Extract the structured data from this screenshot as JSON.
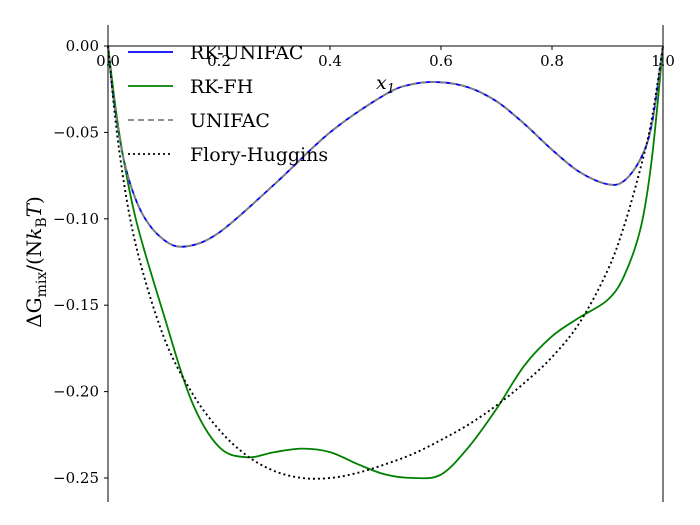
{
  "chart_data": {
    "type": "line",
    "xlabel": "x1",
    "ylabel": "ΔG_mix/(N k_B T)",
    "xlim": [
      0.0,
      1.0
    ],
    "ylim": [
      -0.265,
      0.013
    ],
    "xticks": [
      0.0,
      0.2,
      0.4,
      0.6,
      0.8,
      1.0
    ],
    "xtick_labels": [
      "0.0",
      "0.2",
      "0.4",
      "0.6",
      "0.8",
      "1.0"
    ],
    "yticks": [
      0.0,
      -0.05,
      -0.1,
      -0.15,
      -0.2,
      -0.25
    ],
    "ytick_labels": [
      "0.00",
      "−0.05",
      "−0.10",
      "−0.15",
      "−0.20",
      "−0.25"
    ],
    "grid": false,
    "legend_position": "top-left",
    "series": [
      {
        "name": "RK-UNIFAC",
        "color": "#0000ff",
        "style": "solid",
        "x": [
          0.0,
          0.01,
          0.03,
          0.06,
          0.1,
          0.14,
          0.2,
          0.3,
          0.4,
          0.5,
          0.55,
          0.6,
          0.65,
          0.7,
          0.75,
          0.8,
          0.85,
          0.9,
          0.93,
          0.96,
          0.98,
          1.0
        ],
        "y": [
          0.0,
          -0.03,
          -0.068,
          -0.096,
          -0.112,
          -0.116,
          -0.108,
          -0.08,
          -0.05,
          -0.028,
          -0.022,
          -0.021,
          -0.024,
          -0.032,
          -0.045,
          -0.06,
          -0.073,
          -0.08,
          -0.078,
          -0.065,
          -0.045,
          0.0
        ]
      },
      {
        "name": "RK-FH",
        "color": "#008000",
        "style": "solid",
        "x": [
          0.0,
          0.02,
          0.05,
          0.1,
          0.15,
          0.2,
          0.25,
          0.3,
          0.35,
          0.4,
          0.45,
          0.5,
          0.55,
          0.6,
          0.65,
          0.7,
          0.75,
          0.8,
          0.85,
          0.9,
          0.93,
          0.96,
          0.98,
          1.0
        ],
        "y": [
          0.0,
          -0.05,
          -0.1,
          -0.155,
          -0.205,
          -0.232,
          -0.238,
          -0.235,
          -0.233,
          -0.235,
          -0.242,
          -0.248,
          -0.25,
          -0.248,
          -0.232,
          -0.21,
          -0.185,
          -0.168,
          -0.157,
          -0.147,
          -0.133,
          -0.105,
          -0.065,
          0.0
        ]
      },
      {
        "name": "UNIFAC",
        "color": "#808080",
        "style": "dashed",
        "x": [
          0.0,
          0.01,
          0.03,
          0.06,
          0.1,
          0.14,
          0.2,
          0.3,
          0.4,
          0.5,
          0.55,
          0.6,
          0.65,
          0.7,
          0.75,
          0.8,
          0.85,
          0.9,
          0.93,
          0.96,
          0.98,
          1.0
        ],
        "y": [
          0.0,
          -0.03,
          -0.068,
          -0.096,
          -0.112,
          -0.116,
          -0.108,
          -0.08,
          -0.05,
          -0.028,
          -0.022,
          -0.021,
          -0.024,
          -0.032,
          -0.045,
          -0.06,
          -0.073,
          -0.08,
          -0.078,
          -0.065,
          -0.045,
          0.0
        ]
      },
      {
        "name": "Flory-Huggins",
        "color": "#000000",
        "style": "dotted",
        "x": [
          0.0,
          0.02,
          0.05,
          0.1,
          0.15,
          0.2,
          0.25,
          0.3,
          0.35,
          0.4,
          0.45,
          0.5,
          0.55,
          0.6,
          0.65,
          0.7,
          0.75,
          0.8,
          0.85,
          0.9,
          0.93,
          0.96,
          0.98,
          1.0
        ],
        "y": [
          0.0,
          -0.06,
          -0.115,
          -0.168,
          -0.2,
          -0.222,
          -0.237,
          -0.246,
          -0.25,
          -0.25,
          -0.247,
          -0.242,
          -0.236,
          -0.228,
          -0.219,
          -0.208,
          -0.195,
          -0.18,
          -0.16,
          -0.13,
          -0.104,
          -0.07,
          -0.042,
          0.0
        ]
      }
    ]
  }
}
